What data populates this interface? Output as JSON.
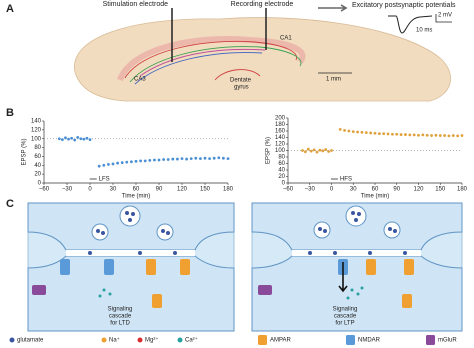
{
  "panel_a": {
    "label": "A",
    "stimulation_electrode": "Stimulation electrode",
    "recording_electrode": "Recording electrode",
    "epsp": "Excitatory postsynaptic potentials",
    "scale_mv": "2 mV",
    "scale_ms": "10 ms",
    "ca1": "CA1",
    "ca3": "CA3",
    "dentate_gyrus": [
      "Dentate",
      "gyrus"
    ],
    "scale_mm": "1 mm"
  },
  "panel_b": {
    "label": "B"
  },
  "chart_data": [
    {
      "type": "scatter",
      "y_label": "EPSP (%)",
      "x_label": "Time (min)",
      "annotation": "LFS",
      "xlim": [
        -60,
        180
      ],
      "ylim": [
        0,
        140
      ],
      "xticks": [
        {
          "value": -60,
          "label": "−60"
        },
        {
          "value": -30,
          "label": "−30"
        },
        0,
        30,
        60,
        90,
        120,
        150,
        180
      ],
      "yticks": [
        0,
        20,
        40,
        60,
        80,
        100,
        120,
        140
      ],
      "reference_line": 100,
      "color": "#4a8fd3",
      "x": [
        -40,
        -36,
        -32,
        -28,
        -24,
        -20,
        -16,
        -12,
        -8,
        -4,
        0,
        12,
        18,
        24,
        30,
        36,
        42,
        48,
        54,
        60,
        66,
        72,
        78,
        84,
        90,
        96,
        102,
        108,
        114,
        120,
        126,
        132,
        138,
        144,
        150,
        156,
        162,
        168,
        174,
        180
      ],
      "values": [
        100,
        98,
        102,
        99,
        101,
        97,
        103,
        100,
        99,
        101,
        98,
        38,
        40,
        42,
        43,
        45,
        46,
        47,
        48,
        49,
        50,
        50,
        51,
        52,
        52,
        53,
        53,
        54,
        54,
        55,
        54,
        55,
        56,
        55,
        56,
        55,
        56,
        57,
        56,
        55
      ]
    },
    {
      "type": "scatter",
      "y_label": "EPSP (%)",
      "x_label": "Time (min)",
      "annotation": "HFS",
      "xlim": [
        -60,
        180
      ],
      "ylim": [
        0,
        200
      ],
      "xticks": [
        {
          "value": -60,
          "label": "−60"
        },
        {
          "value": -30,
          "label": "−30"
        },
        0,
        30,
        60,
        90,
        120,
        150,
        180
      ],
      "yticks": [
        0,
        20,
        40,
        60,
        80,
        100,
        120,
        140,
        160,
        180,
        200
      ],
      "reference_line": 100,
      "color": "#e0a03c",
      "x": [
        -40,
        -36,
        -32,
        -28,
        -24,
        -20,
        -16,
        -12,
        -8,
        -4,
        0,
        12,
        18,
        24,
        30,
        36,
        42,
        48,
        54,
        60,
        66,
        72,
        78,
        84,
        90,
        96,
        102,
        108,
        114,
        120,
        126,
        132,
        138,
        144,
        150,
        156,
        162,
        168,
        174,
        180
      ],
      "values": [
        100,
        96,
        104,
        98,
        102,
        95,
        101,
        99,
        103,
        97,
        100,
        165,
        162,
        160,
        158,
        157,
        156,
        155,
        154,
        153,
        152,
        152,
        151,
        150,
        150,
        149,
        149,
        148,
        148,
        147,
        148,
        147,
        146,
        147,
        146,
        146,
        145,
        146,
        145,
        146
      ]
    }
  ],
  "panel_c": {
    "label": "C",
    "ltd": [
      "Signaling",
      "cascade",
      "for LTD"
    ],
    "ltp": [
      "Signaling",
      "cascade",
      "for LTP"
    ],
    "legend": [
      "glutamate",
      "Na⁺",
      "Mg²⁺",
      "Ca²⁺",
      "AMPAR",
      "NMDAR",
      "mGluR"
    ]
  }
}
